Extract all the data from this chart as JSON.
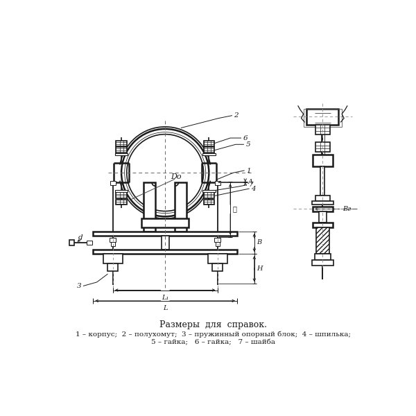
{
  "bg_color": "#ffffff",
  "line_color": "#1a1a1a",
  "title_text": "Размеры  для  справок.",
  "legend_line1": "1 – корпус;  2 – полухомут;  3 – пружинный опорный блок;  4 – шпилька;",
  "legend_line2": "5 – гайка;   6 – гайка;   7 – шайба",
  "label_D0": "Dо",
  "label_d": "d",
  "label_A": "A",
  "label_B": "B",
  "label_H": "H",
  "label_ell": "ℓ",
  "label_L": "L",
  "label_L1": "L₁",
  "label_Br": "Bг"
}
